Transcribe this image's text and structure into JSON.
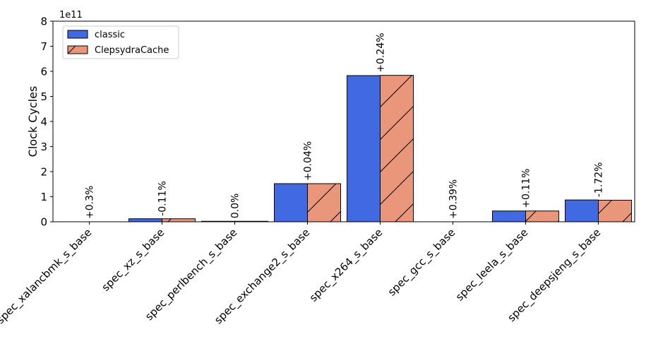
{
  "chart_data": {
    "type": "bar",
    "categories": [
      "spec_xalancbmk_s_base",
      "spec_xz_s_base",
      "spec_perlbench_s_base",
      "spec_exchange2_s_base",
      "spec_x264_s_base",
      "spec_gcc_s_base",
      "spec_leela_s_base",
      "spec_deepsjeng_s_base"
    ],
    "series": [
      {
        "name": "classic",
        "color": "#4169e1",
        "hatch": "none",
        "values": [
          0.0,
          0.12,
          0.02,
          1.52,
          5.83,
          0.0,
          0.43,
          0.87
        ]
      },
      {
        "name": "ClepsydraCache",
        "color": "#e9967a",
        "hatch": "diagonal",
        "values": [
          0.0,
          0.12,
          0.02,
          1.52,
          5.84,
          0.0,
          0.43,
          0.86
        ]
      }
    ],
    "annotations": [
      "+0.3%",
      "-0.11%",
      "0.0%",
      "+0.04%",
      "+0.24%",
      "+0.39%",
      "+0.11%",
      "-1.72%"
    ],
    "ylabel": "Clock Cycles",
    "xlabel": "",
    "ylim": [
      0,
      8
    ],
    "yticks": [
      "0",
      "1",
      "2",
      "3",
      "4",
      "5",
      "6",
      "7",
      "8"
    ],
    "y_offset_label": "1e11",
    "legend_position": "upper-left",
    "grid": false
  }
}
